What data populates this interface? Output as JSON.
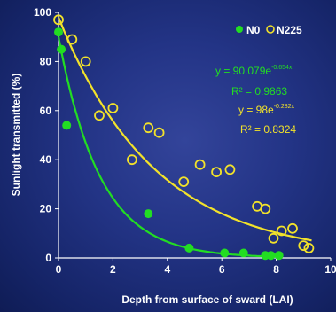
{
  "chart_data": {
    "type": "scatter",
    "xlabel": "Depth from surface of sward (LAI)",
    "ylabel": "Sunlight transmitted (%)",
    "xlim": [
      0,
      10
    ],
    "ylim": [
      0,
      100
    ],
    "x_ticks": [
      "0",
      "2",
      "4",
      "6",
      "8",
      "10"
    ],
    "y_ticks": [
      "0",
      "20",
      "40",
      "60",
      "80",
      "100"
    ],
    "legend_position": "top-right",
    "series": [
      {
        "name": "N0",
        "marker": "filled-circle",
        "color": "#22dd22",
        "x": [
          0.0,
          0.1,
          0.3,
          3.3,
          4.8,
          6.1,
          6.8,
          7.6,
          7.8,
          8.1
        ],
        "y": [
          92,
          85,
          54,
          18,
          4,
          2,
          2,
          1,
          1,
          1
        ],
        "fit": {
          "a": 90.079,
          "b": 0.654,
          "equation": "y = 90.079e",
          "exponent": "-0.654x",
          "r2_text": "R² = 0.9863"
        }
      },
      {
        "name": "N225",
        "marker": "open-circle",
        "color": "#f2e22a",
        "x": [
          0.0,
          0.5,
          1.0,
          1.5,
          2.0,
          2.7,
          3.3,
          3.7,
          4.6,
          5.2,
          5.8,
          6.3,
          7.3,
          7.6,
          7.9,
          8.2,
          8.6,
          9.0,
          9.2
        ],
        "y": [
          97,
          89,
          80,
          58,
          61,
          40,
          53,
          51,
          31,
          38,
          35,
          36,
          21,
          20,
          8,
          11,
          12,
          5,
          4
        ],
        "fit": {
          "a": 98,
          "b": 0.282,
          "equation": "y = 98e",
          "exponent": "-0.282x",
          "r2_text": "R² = 0.8324"
        }
      }
    ]
  }
}
